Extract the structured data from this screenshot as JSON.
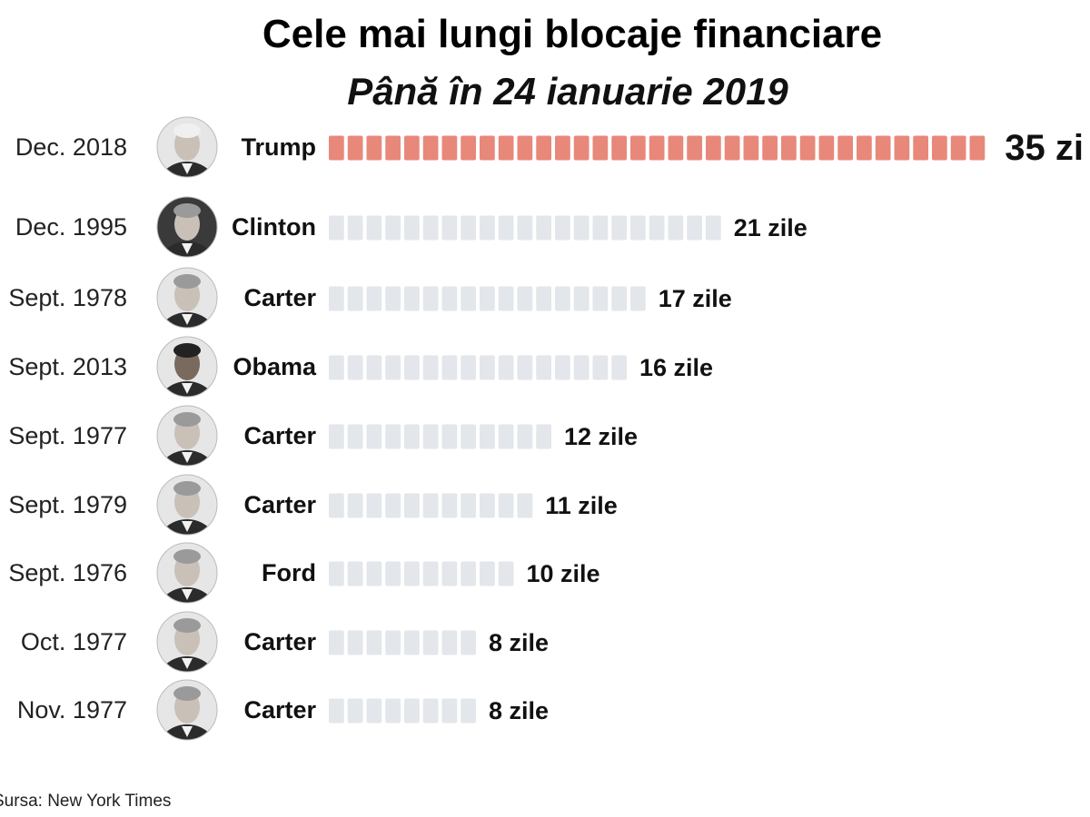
{
  "chart_data": {
    "type": "bar",
    "orientation": "horizontal",
    "title": "Cele mai lungi blocaje financiare",
    "subtitle": "Până în 24 ianuarie 2019",
    "unit": "zile",
    "rows": [
      {
        "date": "Dec. 2018",
        "president": "Trump",
        "value": 35,
        "label": "35 zi",
        "highlight": true
      },
      {
        "date": "Dec. 1995",
        "president": "Clinton",
        "value": 21,
        "label": "21 zile",
        "highlight": false
      },
      {
        "date": "Sept. 1978",
        "president": "Carter",
        "value": 17,
        "label": "17 zile",
        "highlight": false
      },
      {
        "date": "Sept. 2013",
        "president": "Obama",
        "value": 16,
        "label": "16 zile",
        "highlight": false
      },
      {
        "date": "Sept. 1977",
        "president": "Carter",
        "value": 12,
        "label": "12 zile",
        "highlight": false
      },
      {
        "date": "Sept. 1979",
        "president": "Carter",
        "value": 11,
        "label": "11 zile",
        "highlight": false
      },
      {
        "date": "Sept. 1976",
        "president": "Ford",
        "value": 10,
        "label": "10 zile",
        "highlight": false
      },
      {
        "date": "Oct. 1977",
        "president": "Carter",
        "value": 8,
        "label": "8 zile",
        "highlight": false
      },
      {
        "date": "Nov. 1977",
        "president": "Carter",
        "value": 8,
        "label": "8 zile",
        "highlight": false
      }
    ],
    "colors": {
      "highlight_bar": "#e8887a",
      "bar": "#e3e6ea",
      "portrait_dark": "#2a2a2a",
      "portrait_light": "#d9d9d9"
    }
  },
  "source": "Sursa: New York Times"
}
